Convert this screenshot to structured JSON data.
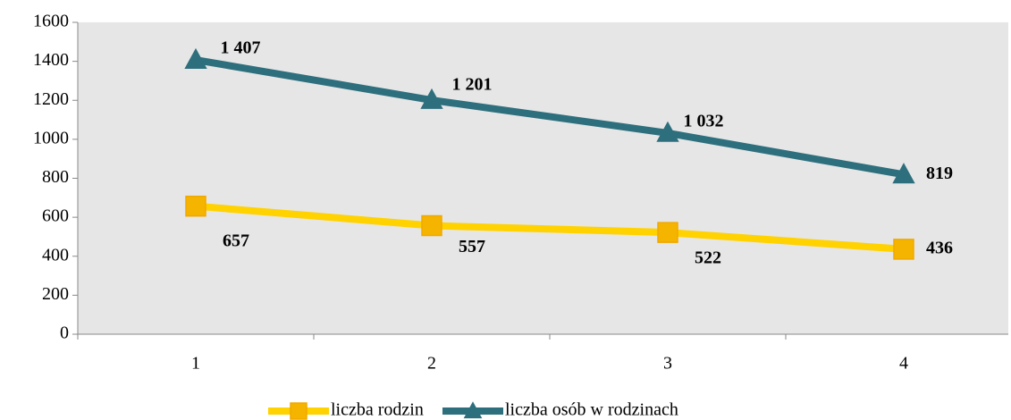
{
  "chart_data": {
    "type": "line",
    "categories": [
      "1",
      "2",
      "3",
      "4"
    ],
    "series": [
      {
        "name": "liczba rodzin",
        "color": "#ffd200",
        "marker_color": "#f5b400",
        "marker": "square",
        "values": [
          657,
          557,
          522,
          436
        ],
        "value_labels": [
          "657",
          "557",
          "522",
          "436"
        ]
      },
      {
        "name": "liczba osób w rodzinach",
        "color": "#2e6f7d",
        "marker_color": "#2e6f7d",
        "marker": "triangle",
        "values": [
          1407,
          1201,
          1032,
          819
        ],
        "value_labels": [
          "1 407",
          "1 201",
          "1 032",
          "819"
        ]
      }
    ],
    "ylim": [
      0,
      1600
    ],
    "yticks": [
      0,
      200,
      400,
      600,
      800,
      1000,
      1200,
      1400,
      1600
    ],
    "legend": "bottom"
  }
}
